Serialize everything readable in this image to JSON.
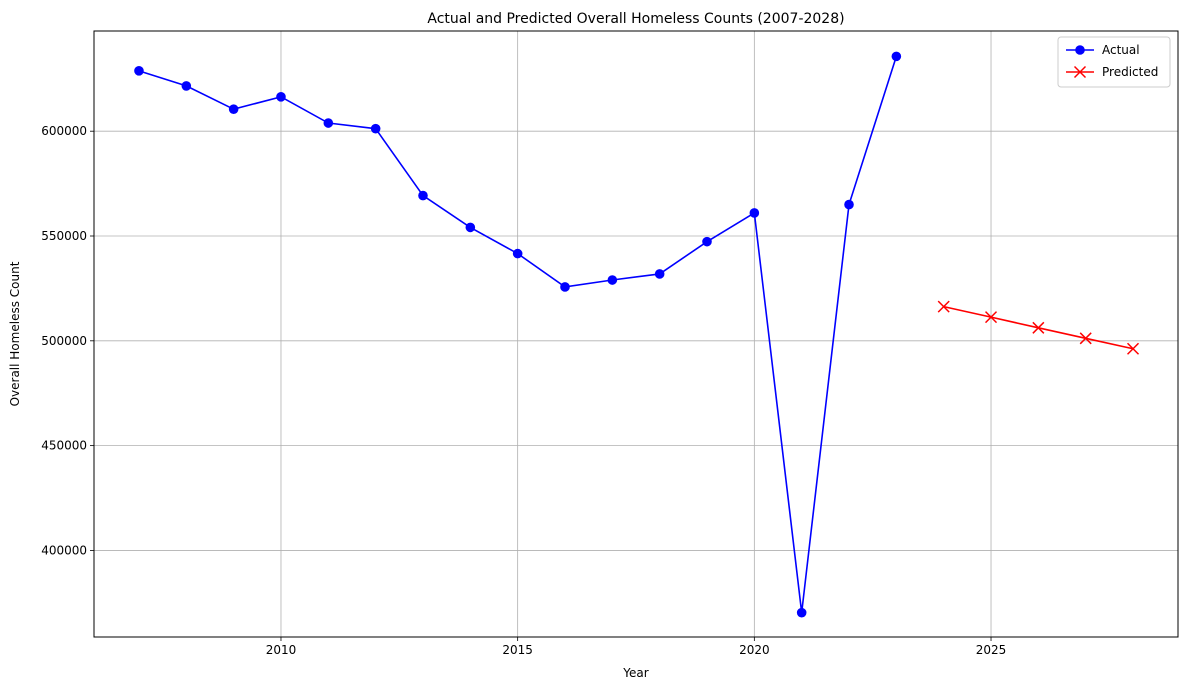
{
  "chart_data": {
    "type": "line",
    "title": "Actual and Predicted Overall Homeless Counts (2007-2028)",
    "xlabel": "Year",
    "ylabel": "Overall Homeless Count",
    "xlim": [
      2006.05,
      2028.95
    ],
    "ylim": [
      358700,
      647800
    ],
    "xticks": [
      2010,
      2015,
      2020,
      2025
    ],
    "yticks": [
      400000,
      450000,
      500000,
      550000,
      600000
    ],
    "grid": true,
    "legend_position": "top-right",
    "series": [
      {
        "name": "Actual",
        "color": "#0000ff",
        "marker": "circle",
        "x": [
          2007,
          2008,
          2009,
          2010,
          2011,
          2012,
          2013,
          2014,
          2015,
          2016,
          2017,
          2018,
          2019,
          2020,
          2021,
          2022,
          2023
        ],
        "y": [
          628800,
          621600,
          610500,
          616400,
          603900,
          601200,
          569300,
          554100,
          541600,
          525700,
          529000,
          531900,
          547300,
          561000,
          370300,
          565000,
          635700
        ]
      },
      {
        "name": "Predicted",
        "color": "#ff0000",
        "marker": "x",
        "x": [
          2024,
          2025,
          2026,
          2027,
          2028
        ],
        "y": [
          516300,
          511300,
          506200,
          501200,
          496200
        ]
      }
    ]
  }
}
